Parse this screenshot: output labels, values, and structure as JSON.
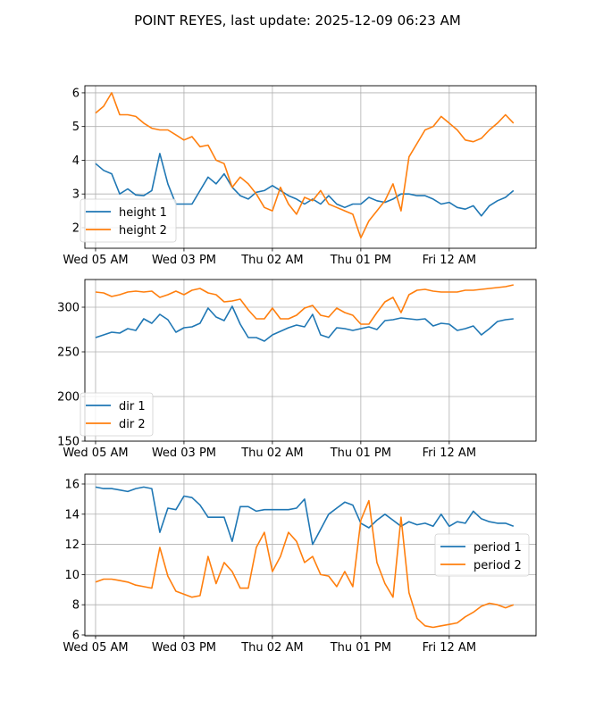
{
  "title": "POINT REYES, last update: 2025-12-09 06:23 AM",
  "colors": {
    "series1": "#1f77b4",
    "series2": "#ff7f0e",
    "grid": "#b0b0b0"
  },
  "chart_data": [
    {
      "type": "line",
      "title": "",
      "xlabel": "",
      "ylabel": "",
      "grid": true,
      "legend_position": "lower-left",
      "xlim": [
        -1.33,
        54.8
      ],
      "ylim": [
        1.39,
        6.21
      ],
      "xticks": [
        0,
        11,
        22,
        33,
        44
      ],
      "xtick_labels": [
        "Wed 05 AM",
        "Wed 03 PM",
        "Thu 02 AM",
        "Thu 01 PM",
        "Fri 12 AM"
      ],
      "yticks": [
        2,
        3,
        4,
        5,
        6
      ],
      "ytick_labels": [
        "2",
        "3",
        "4",
        "5",
        "6"
      ],
      "series": [
        {
          "name": "height 1",
          "values": [
            3.9,
            3.7,
            3.6,
            3.0,
            3.15,
            2.97,
            2.95,
            3.1,
            4.2,
            3.3,
            2.7,
            2.7,
            2.7,
            3.1,
            3.5,
            3.3,
            3.6,
            3.2,
            2.95,
            2.85,
            3.05,
            3.1,
            3.25,
            3.1,
            2.95,
            2.85,
            2.7,
            2.85,
            2.7,
            2.95,
            2.7,
            2.6,
            2.7,
            2.7,
            2.9,
            2.8,
            2.75,
            2.85,
            3.0,
            3.0,
            2.95,
            2.95,
            2.85,
            2.7,
            2.75,
            2.6,
            2.55,
            2.65,
            2.35,
            2.65,
            2.8,
            2.9,
            3.1
          ]
        },
        {
          "name": "height 2",
          "values": [
            5.4,
            5.6,
            6.0,
            5.35,
            5.35,
            5.3,
            5.1,
            4.95,
            4.9,
            4.9,
            4.75,
            4.6,
            4.7,
            4.4,
            4.45,
            4.0,
            3.9,
            3.2,
            3.5,
            3.3,
            3.0,
            2.6,
            2.5,
            3.2,
            2.7,
            2.4,
            2.9,
            2.8,
            3.1,
            2.7,
            2.6,
            2.5,
            2.4,
            1.7,
            2.2,
            2.5,
            2.8,
            3.3,
            2.5,
            4.1,
            4.5,
            4.9,
            5.0,
            5.3,
            5.1,
            4.9,
            4.6,
            4.55,
            4.65,
            4.9,
            5.1,
            5.35,
            5.1
          ]
        }
      ]
    },
    {
      "type": "line",
      "title": "",
      "xlabel": "",
      "ylabel": "",
      "grid": true,
      "legend_position": "lower-left",
      "xlim": [
        -1.33,
        54.8
      ],
      "ylim": [
        150,
        331
      ],
      "xticks": [
        0,
        11,
        22,
        33,
        44
      ],
      "xtick_labels": [
        "Wed 05 AM",
        "Wed 03 PM",
        "Thu 02 AM",
        "Thu 01 PM",
        "Fri 12 AM"
      ],
      "yticks": [
        150,
        200,
        250,
        300
      ],
      "ytick_labels": [
        "150",
        "200",
        "250",
        "300"
      ],
      "series": [
        {
          "name": "dir 1",
          "values": [
            266,
            269,
            272,
            271,
            276,
            274,
            287,
            282,
            292,
            286,
            272,
            277,
            278,
            282,
            299,
            289,
            285,
            301,
            281,
            266,
            266,
            262,
            269,
            273,
            277,
            280,
            278,
            292,
            269,
            266,
            277,
            276,
            274,
            276,
            278,
            275,
            285,
            286,
            288,
            287,
            286,
            287,
            279,
            282,
            281,
            274,
            276,
            279,
            269,
            276,
            284,
            286,
            287
          ]
        },
        {
          "name": "dir 2",
          "values": [
            317,
            316,
            312,
            314,
            317,
            318,
            317,
            318,
            311,
            314,
            318,
            314,
            319,
            321,
            316,
            314,
            306,
            307,
            309,
            297,
            287,
            287,
            299,
            287,
            287,
            291,
            299,
            302,
            291,
            289,
            299,
            294,
            291,
            281,
            281,
            294,
            306,
            311,
            294,
            314,
            319,
            320,
            318,
            317,
            317,
            317,
            319,
            319,
            320,
            321,
            322,
            323,
            325
          ]
        }
      ]
    },
    {
      "type": "line",
      "title": "",
      "xlabel": "",
      "ylabel": "",
      "grid": true,
      "legend_position": "center-right",
      "xlim": [
        -1.33,
        54.8
      ],
      "ylim": [
        5.94,
        16.65
      ],
      "xticks": [
        0,
        11,
        22,
        33,
        44
      ],
      "xtick_labels": [
        "Wed 05 AM",
        "Wed 03 PM",
        "Thu 02 AM",
        "Thu 01 PM",
        "Fri 12 AM"
      ],
      "yticks": [
        6,
        8,
        10,
        12,
        14,
        16
      ],
      "ytick_labels": [
        "6",
        "8",
        "10",
        "12",
        "14",
        "16"
      ],
      "series": [
        {
          "name": "period 1",
          "values": [
            15.8,
            15.7,
            15.7,
            15.6,
            15.5,
            15.7,
            15.8,
            15.7,
            12.8,
            14.4,
            14.3,
            15.2,
            15.1,
            14.6,
            13.8,
            13.8,
            13.8,
            12.2,
            14.5,
            14.5,
            14.2,
            14.3,
            14.3,
            14.3,
            14.3,
            14.4,
            15.0,
            12.0,
            13.0,
            14.0,
            14.4,
            14.8,
            14.6,
            13.4,
            13.1,
            13.6,
            14.0,
            13.6,
            13.2,
            13.5,
            13.3,
            13.4,
            13.2,
            14.0,
            13.2,
            13.5,
            13.4,
            14.2,
            13.7,
            13.5,
            13.4,
            13.4,
            13.2
          ]
        },
        {
          "name": "period 2",
          "values": [
            9.5,
            9.7,
            9.7,
            9.6,
            9.5,
            9.3,
            9.2,
            9.1,
            11.8,
            9.9,
            8.9,
            8.7,
            8.5,
            8.6,
            11.2,
            9.4,
            10.8,
            10.2,
            9.1,
            9.1,
            11.8,
            12.8,
            10.2,
            11.2,
            12.8,
            12.2,
            10.8,
            11.2,
            10.0,
            9.9,
            9.2,
            10.2,
            9.2,
            13.6,
            14.9,
            10.8,
            9.4,
            8.5,
            13.8,
            8.8,
            7.1,
            6.6,
            6.5,
            6.6,
            6.7,
            6.8,
            7.2,
            7.5,
            7.9,
            8.1,
            8.0,
            7.8,
            8.0
          ]
        }
      ]
    }
  ]
}
